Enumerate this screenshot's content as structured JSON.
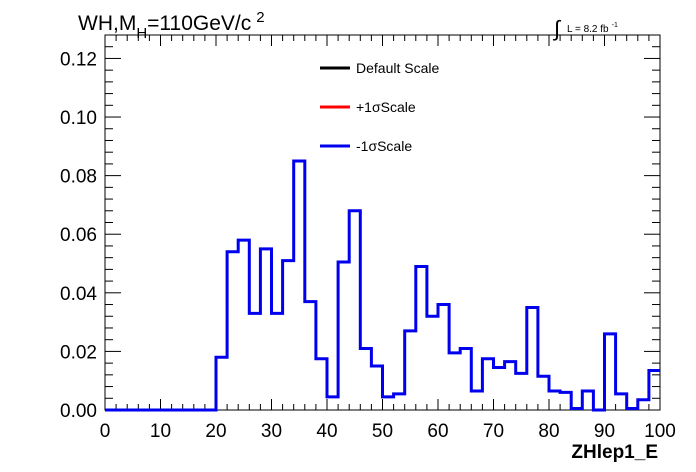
{
  "chart_data": {
    "type": "line",
    "title": "WH,M",
    "title_sub": "H",
    "title_rest": "=110GeV/c",
    "title_sup": "2",
    "lumi": {
      "integral_symbol": "∫",
      "text": "L = 8.2 fb",
      "sup": "-1"
    },
    "xlabel": "ZHlep1_E",
    "xlim": [
      0,
      100
    ],
    "ylim": [
      0,
      0.128
    ],
    "x_ticks": [
      0,
      10,
      20,
      30,
      40,
      50,
      60,
      70,
      80,
      90,
      100
    ],
    "x_tick_labels": [
      "0",
      "10",
      "20",
      "30",
      "40",
      "50",
      "60",
      "70",
      "80",
      "90",
      "100"
    ],
    "y_ticks": [
      0,
      0.02,
      0.04,
      0.06,
      0.08,
      0.1,
      0.12
    ],
    "y_tick_labels": [
      "0.00",
      "0.02",
      "0.04",
      "0.06",
      "0.08",
      "0.10",
      "0.12"
    ],
    "bin_edges": [
      0,
      2,
      4,
      6,
      8,
      10,
      12,
      14,
      16,
      18,
      20,
      22,
      24,
      26,
      28,
      30,
      32,
      34,
      36,
      38,
      40,
      42,
      44,
      46,
      48,
      50,
      52,
      54,
      56,
      58,
      60,
      62,
      64,
      66,
      68,
      70,
      72,
      74,
      76,
      78,
      80,
      82,
      84,
      86,
      88,
      90,
      92,
      94,
      96,
      98,
      100
    ],
    "legend": [
      {
        "label": "Default Scale",
        "color": "#000000"
      },
      {
        "label": "+1σScale",
        "color": "#ff0000"
      },
      {
        "label": "-1σScale",
        "color": "#0000ee"
      }
    ],
    "series": [
      {
        "name": "-1σScale",
        "color": "#0000ee",
        "values": [
          0,
          0,
          0,
          0,
          0,
          0,
          0,
          0,
          0,
          0,
          0.018,
          0.054,
          0.058,
          0.033,
          0.055,
          0.033,
          0.051,
          0.085,
          0.037,
          0.0175,
          0.0045,
          0.0505,
          0.068,
          0.021,
          0.015,
          0.0045,
          0.0055,
          0.027,
          0.049,
          0.032,
          0.036,
          0.0195,
          0.021,
          0.0065,
          0.0175,
          0.0145,
          0.0165,
          0.0125,
          0.035,
          0.0115,
          0.0065,
          0.006,
          0.0005,
          0.0065,
          0,
          0.026,
          0.0055,
          0.0005,
          0.0035,
          0.0135
        ]
      }
    ]
  }
}
